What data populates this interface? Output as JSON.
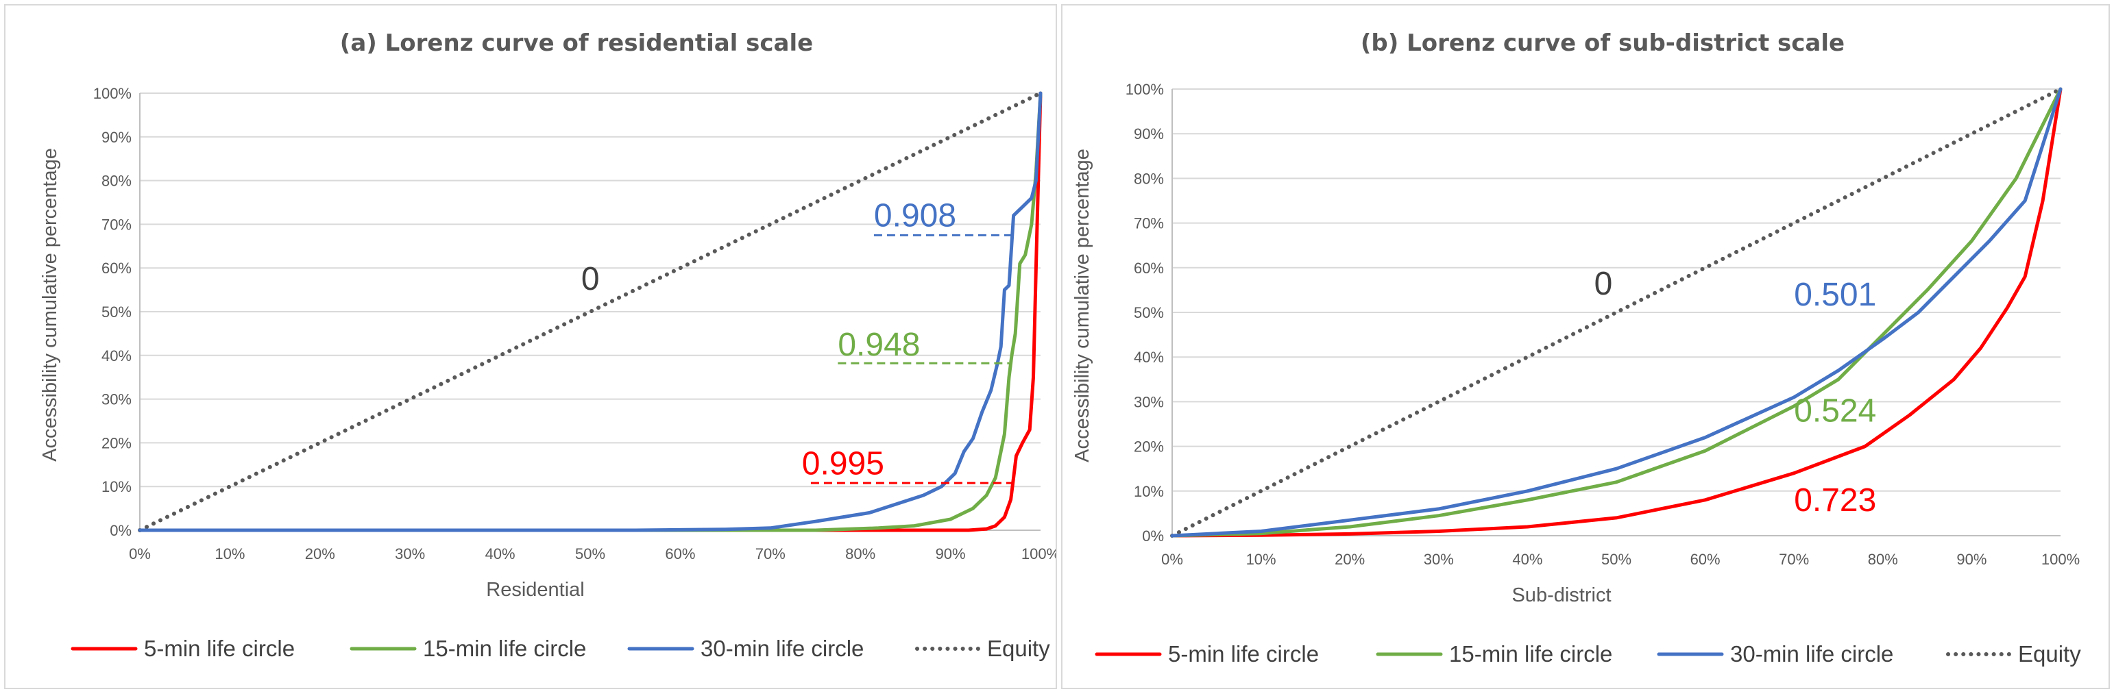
{
  "panels": [
    {
      "id": "a",
      "chart_data": {
        "type": "line",
        "title": "(a) Lorenz curve of residential scale",
        "xlabel": "Residential",
        "ylabel": "Accessibility cumulative percentage",
        "xlim": [
          0,
          100
        ],
        "ylim": [
          0,
          100
        ],
        "x_ticks": [
          "0%",
          "10%",
          "20%",
          "30%",
          "40%",
          "50%",
          "60%",
          "70%",
          "80%",
          "90%",
          "100%"
        ],
        "y_ticks": [
          "0%",
          "10%",
          "20%",
          "30%",
          "40%",
          "50%",
          "60%",
          "70%",
          "80%",
          "90%",
          "100%"
        ],
        "grid": true,
        "legend": "bottom",
        "series": [
          {
            "name": "5-min life circle",
            "color": "#ff0000",
            "points": [
              [
                0,
                0
              ],
              [
                85,
                0
              ],
              [
                92,
                0
              ],
              [
                94,
                0.3
              ],
              [
                95,
                1
              ],
              [
                96,
                3
              ],
              [
                96.7,
                7
              ],
              [
                97,
                12
              ],
              [
                97.3,
                17
              ],
              [
                98,
                20
              ],
              [
                98.8,
                23
              ],
              [
                99.2,
                35
              ],
              [
                99.5,
                60
              ],
              [
                100,
                100
              ]
            ]
          },
          {
            "name": "15-min life circle",
            "color": "#70ad47",
            "points": [
              [
                0,
                0
              ],
              [
                75,
                0
              ],
              [
                82,
                0.5
              ],
              [
                86,
                1
              ],
              [
                90,
                2.5
              ],
              [
                92.5,
                5
              ],
              [
                94,
                8
              ],
              [
                95,
                12
              ],
              [
                96,
                22
              ],
              [
                96.5,
                35
              ],
              [
                96.8,
                40
              ],
              [
                97.2,
                45
              ],
              [
                97.7,
                61
              ],
              [
                98.3,
                63
              ],
              [
                99,
                70
              ],
              [
                99.5,
                82
              ],
              [
                100,
                100
              ]
            ]
          },
          {
            "name": "30-min life circle",
            "color": "#4472c4",
            "points": [
              [
                0,
                0
              ],
              [
                55,
                0
              ],
              [
                65,
                0.2
              ],
              [
                70,
                0.5
              ],
              [
                75,
                2
              ],
              [
                78,
                3
              ],
              [
                81,
                4
              ],
              [
                84,
                6
              ],
              [
                87,
                8
              ],
              [
                89,
                10
              ],
              [
                90.5,
                13
              ],
              [
                91.5,
                18
              ],
              [
                92.5,
                21
              ],
              [
                93.5,
                27
              ],
              [
                94.5,
                32
              ],
              [
                95.2,
                38
              ],
              [
                95.6,
                42
              ],
              [
                96,
                55
              ],
              [
                96.5,
                56
              ],
              [
                97,
                72
              ],
              [
                98,
                74
              ],
              [
                99,
                76
              ],
              [
                99.5,
                80
              ],
              [
                100,
                100
              ]
            ]
          },
          {
            "name": "Equity",
            "color": "#595959",
            "dotted": true,
            "points": [
              [
                0,
                0
              ],
              [
                100,
                100
              ]
            ]
          }
        ],
        "annotations": [
          {
            "text": "0",
            "x": 49,
            "y": 55,
            "color": "#404040",
            "line": null
          },
          {
            "text": "0.908",
            "x": 81.5,
            "y": 69.5,
            "color": "#4472c4",
            "line": {
              "x1": 81.5,
              "x2": 97,
              "y": 67.5
            }
          },
          {
            "text": "0.948",
            "x": 77.5,
            "y": 40,
            "color": "#70ad47",
            "line": {
              "x1": 77.5,
              "x2": 96.5,
              "y": 38.2
            }
          },
          {
            "text": "0.995",
            "x": 73.5,
            "y": 12.8,
            "color": "#ff0000",
            "line": {
              "x1": 74.5,
              "x2": 97.5,
              "y": 10.8
            }
          }
        ]
      }
    },
    {
      "id": "b",
      "chart_data": {
        "type": "line",
        "title": "(b) Lorenz curve of sub-district scale",
        "xlabel": "Sub-district",
        "ylabel": "Accessibility cumulative percentage",
        "xlim": [
          0,
          100
        ],
        "ylim": [
          0,
          100
        ],
        "x_ticks": [
          "0%",
          "10%",
          "20%",
          "30%",
          "40%",
          "50%",
          "60%",
          "70%",
          "80%",
          "90%",
          "100%"
        ],
        "y_ticks": [
          "0%",
          "10%",
          "20%",
          "30%",
          "40%",
          "50%",
          "60%",
          "70%",
          "80%",
          "90%",
          "100%"
        ],
        "grid": true,
        "legend": "bottom",
        "series": [
          {
            "name": "5-min life circle",
            "color": "#ff0000",
            "points": [
              [
                0,
                0
              ],
              [
                10,
                0.1
              ],
              [
                20,
                0.4
              ],
              [
                30,
                1
              ],
              [
                40,
                2
              ],
              [
                50,
                4
              ],
              [
                60,
                8
              ],
              [
                70,
                14
              ],
              [
                78,
                20
              ],
              [
                83,
                27
              ],
              [
                88,
                35
              ],
              [
                91,
                42
              ],
              [
                94,
                51
              ],
              [
                96,
                58
              ],
              [
                98,
                75
              ],
              [
                100,
                100
              ]
            ]
          },
          {
            "name": "15-min life circle",
            "color": "#70ad47",
            "points": [
              [
                0,
                0
              ],
              [
                10,
                0.5
              ],
              [
                20,
                2
              ],
              [
                30,
                4.5
              ],
              [
                40,
                8
              ],
              [
                50,
                12
              ],
              [
                60,
                19
              ],
              [
                70,
                29
              ],
              [
                75,
                35
              ],
              [
                80,
                45
              ],
              [
                85,
                55
              ],
              [
                90,
                66
              ],
              [
                95,
                80
              ],
              [
                100,
                100
              ]
            ]
          },
          {
            "name": "30-min life circle",
            "color": "#4472c4",
            "points": [
              [
                0,
                0
              ],
              [
                5,
                0.5
              ],
              [
                10,
                1
              ],
              [
                20,
                3.5
              ],
              [
                30,
                6
              ],
              [
                40,
                10
              ],
              [
                50,
                15
              ],
              [
                60,
                22
              ],
              [
                70,
                31
              ],
              [
                75,
                37
              ],
              [
                80,
                44
              ],
              [
                84,
                50
              ],
              [
                88,
                58
              ],
              [
                92,
                66
              ],
              [
                96,
                75
              ],
              [
                100,
                100
              ]
            ]
          },
          {
            "name": "Equity",
            "color": "#595959",
            "dotted": true,
            "points": [
              [
                0,
                0
              ],
              [
                100,
                100
              ]
            ]
          }
        ],
        "annotations": [
          {
            "text": "0",
            "x": 47.5,
            "y": 54,
            "color": "#404040",
            "line": null
          },
          {
            "text": "0.501",
            "x": 70,
            "y": 51.5,
            "color": "#4472c4",
            "line": null
          },
          {
            "text": "0.524",
            "x": 70,
            "y": 25.5,
            "color": "#70ad47",
            "line": null
          },
          {
            "text": "0.723",
            "x": 70,
            "y": 5.5,
            "color": "#ff0000",
            "line": null
          }
        ]
      }
    }
  ]
}
